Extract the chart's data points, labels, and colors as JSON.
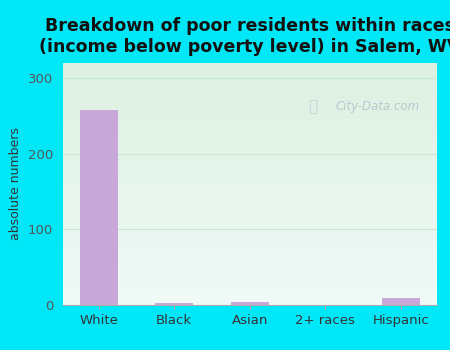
{
  "title": "Breakdown of poor residents within races\n(income below poverty level) in Salem, WV",
  "categories": [
    "White",
    "Black",
    "Asian",
    "2+ races",
    "Hispanic"
  ],
  "values": [
    258,
    2,
    3,
    0,
    9
  ],
  "bar_color": "#c8a8d8",
  "ylabel": "absolute numbers",
  "ylim": [
    0,
    320
  ],
  "yticks": [
    0,
    100,
    200,
    300
  ],
  "background_outer": "#00e8f8",
  "background_inner_top_left": "#ddf0e0",
  "background_inner_bottom_right": "#f0faf8",
  "grid_line_color": "#c8e8d0",
  "title_fontsize": 12.5,
  "tick_fontsize": 9.5,
  "ylabel_fontsize": 9,
  "watermark": "City-Data.com"
}
